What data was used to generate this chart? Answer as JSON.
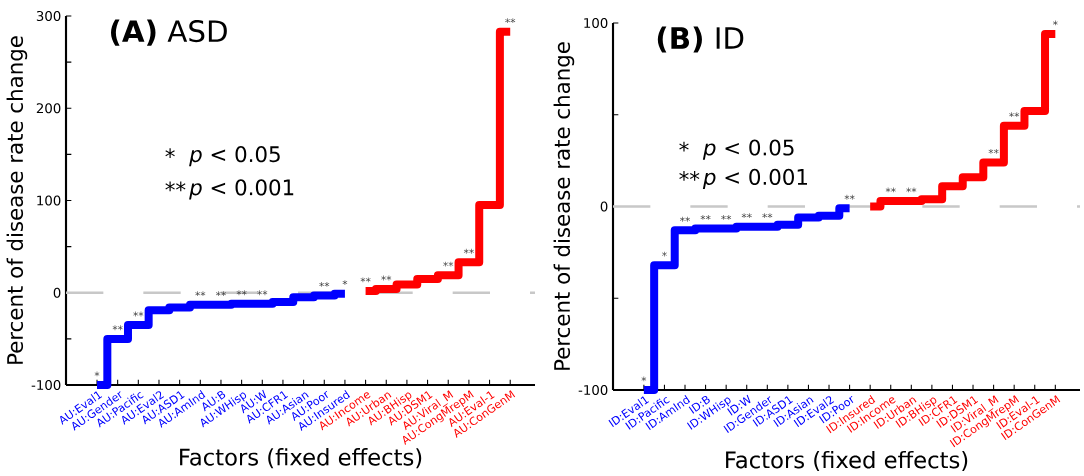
{
  "chart_data": [
    {
      "type": "step",
      "title": "**(A)** ASD",
      "xlabel": "Factors (fixed effects)",
      "ylabel": "Percent of disease rate change",
      "categories": [
        "AU:Eval1",
        "AU:Gender",
        "AU:Pacific",
        "AU:Eval2",
        "AU:ASD1",
        "AU:AmInd",
        "AU:B",
        "AU:WHisp",
        "AU:W",
        "AU:CFR1",
        "AU:Asian",
        "AU:Poor",
        "AU:Insured",
        "AU:Income",
        "AU:Urban",
        "AU:BHisp",
        "AU:DSM1",
        "AU:Viral_M",
        "AU:CongMrepM",
        "AU:Eval-1",
        "AU:ConGenM"
      ],
      "series": [
        {
          "color": "#0000ff",
          "values": [
            -100,
            -50,
            -35,
            -19,
            -16,
            -13,
            -13,
            -12,
            -12,
            -10,
            -5,
            -3,
            -1,
            null,
            null,
            null,
            null,
            null,
            null,
            null,
            null
          ]
        },
        {
          "color": "#ff0000",
          "values": [
            null,
            null,
            null,
            null,
            null,
            null,
            null,
            null,
            null,
            null,
            null,
            null,
            null,
            2,
            4,
            9,
            15,
            19,
            33,
            95,
            283
          ]
        }
      ],
      "ylim": [
        -100,
        300
      ],
      "yticks": [
        -100,
        {
          "value": -50,
          "label": null
        },
        0,
        {
          "value": 50,
          "label": null
        },
        100,
        {
          "value": 150,
          "label": null
        },
        200,
        {
          "value": 250,
          "label": null
        },
        300
      ],
      "ref_lines": [
        {
          "axis": "y",
          "value": 0,
          "color": "#c8c8c8",
          "line_style": "dashed"
        }
      ],
      "annotations": [
        "*",
        "*p* < 0.05",
        "**",
        "*p* < 0.001",
        {
          "text": "*",
          "x": "AU:Eval1",
          "y": -100
        },
        {
          "text": "**",
          "x": "AU:Gender",
          "y": -50
        },
        {
          "text": "**",
          "x": "AU:Pacific",
          "y": -35
        },
        {
          "text": "**",
          "x": "AU:AmInd",
          "y": -13
        },
        {
          "text": "**",
          "x": "AU:B",
          "y": -13
        },
        {
          "text": "**",
          "x": "AU:WHisp",
          "y": -12
        },
        {
          "text": "**",
          "x": "AU:W",
          "y": -12
        },
        {
          "text": "**",
          "x": "AU:Poor",
          "y": -3
        },
        {
          "text": "*",
          "x": "AU:Insured",
          "y": -1
        },
        {
          "text": "**",
          "x": "AU:Income",
          "y": 2
        },
        {
          "text": "**",
          "x": "AU:Urban",
          "y": 4
        },
        {
          "text": "**",
          "x": "AU:Viral_M",
          "y": 19
        },
        {
          "text": "**",
          "x": "AU:CongMrepM",
          "y": 33
        },
        {
          "text": "**",
          "x": "AU:ConGenM",
          "y": 283
        }
      ]
    },
    {
      "type": "step",
      "title": "**(B)** ID",
      "xlabel": "Factors (fixed effects)",
      "ylabel": "Percent of disease rate change",
      "categories": [
        "ID:Eval1",
        "ID:Pacific",
        "ID:AmInd",
        "ID:B",
        "ID:WHisp",
        "ID:W",
        "ID:Gender",
        "ID:ASD1",
        "ID:Asian",
        "ID:Eval2",
        "ID:Poor",
        "ID:Insured",
        "ID:Income",
        "ID:Urban",
        "ID:BHisp",
        "ID:CFR1",
        "ID:DSM1",
        "ID:Viral_M",
        "ID:CongMrepM",
        "ID:Eval-1",
        "ID:ConGenM"
      ],
      "series": [
        {
          "color": "#0000ff",
          "values": [
            -100,
            -32,
            -13,
            -12,
            -12,
            -11,
            -11,
            -10,
            -6,
            -5,
            -1,
            null,
            null,
            null,
            null,
            null,
            null,
            null,
            null,
            null,
            null
          ]
        },
        {
          "color": "#ff0000",
          "values": [
            null,
            null,
            null,
            null,
            null,
            null,
            null,
            null,
            null,
            null,
            null,
            0,
            3,
            3,
            4,
            11,
            16,
            24,
            44,
            52,
            94
          ]
        }
      ],
      "ylim": [
        -100,
        100
      ],
      "yticks": [
        -100,
        {
          "value": -50,
          "label": null
        },
        0,
        {
          "value": 50,
          "label": null
        },
        100
      ],
      "ref_lines": [
        {
          "axis": "y",
          "value": 0,
          "color": "#c8c8c8",
          "line_style": "dashed"
        }
      ],
      "annotations": [
        "*",
        "*p* < 0.05",
        "**",
        "*p* < 0.001",
        {
          "text": "*",
          "x": "ID:Eval1",
          "y": -100
        },
        {
          "text": "*",
          "x": "ID:Pacific",
          "y": -32
        },
        {
          "text": "**",
          "x": "ID:AmInd",
          "y": -13
        },
        {
          "text": "**",
          "x": "ID:B",
          "y": -12
        },
        {
          "text": "**",
          "x": "ID:WHisp",
          "y": -12
        },
        {
          "text": "**",
          "x": "ID:W",
          "y": -11
        },
        {
          "text": "**",
          "x": "ID:Gender",
          "y": -11
        },
        {
          "text": "**",
          "x": "ID:Poor",
          "y": -1
        },
        {
          "text": "**",
          "x": "ID:Income",
          "y": 3
        },
        {
          "text": "**",
          "x": "ID:Urban",
          "y": 3
        },
        {
          "text": "**",
          "x": "ID:Viral_M",
          "y": 24
        },
        {
          "text": "**",
          "x": "ID:CongMrepM",
          "y": 44
        },
        {
          "text": "*",
          "x": "ID:ConGenM",
          "y": 94
        }
      ]
    }
  ]
}
